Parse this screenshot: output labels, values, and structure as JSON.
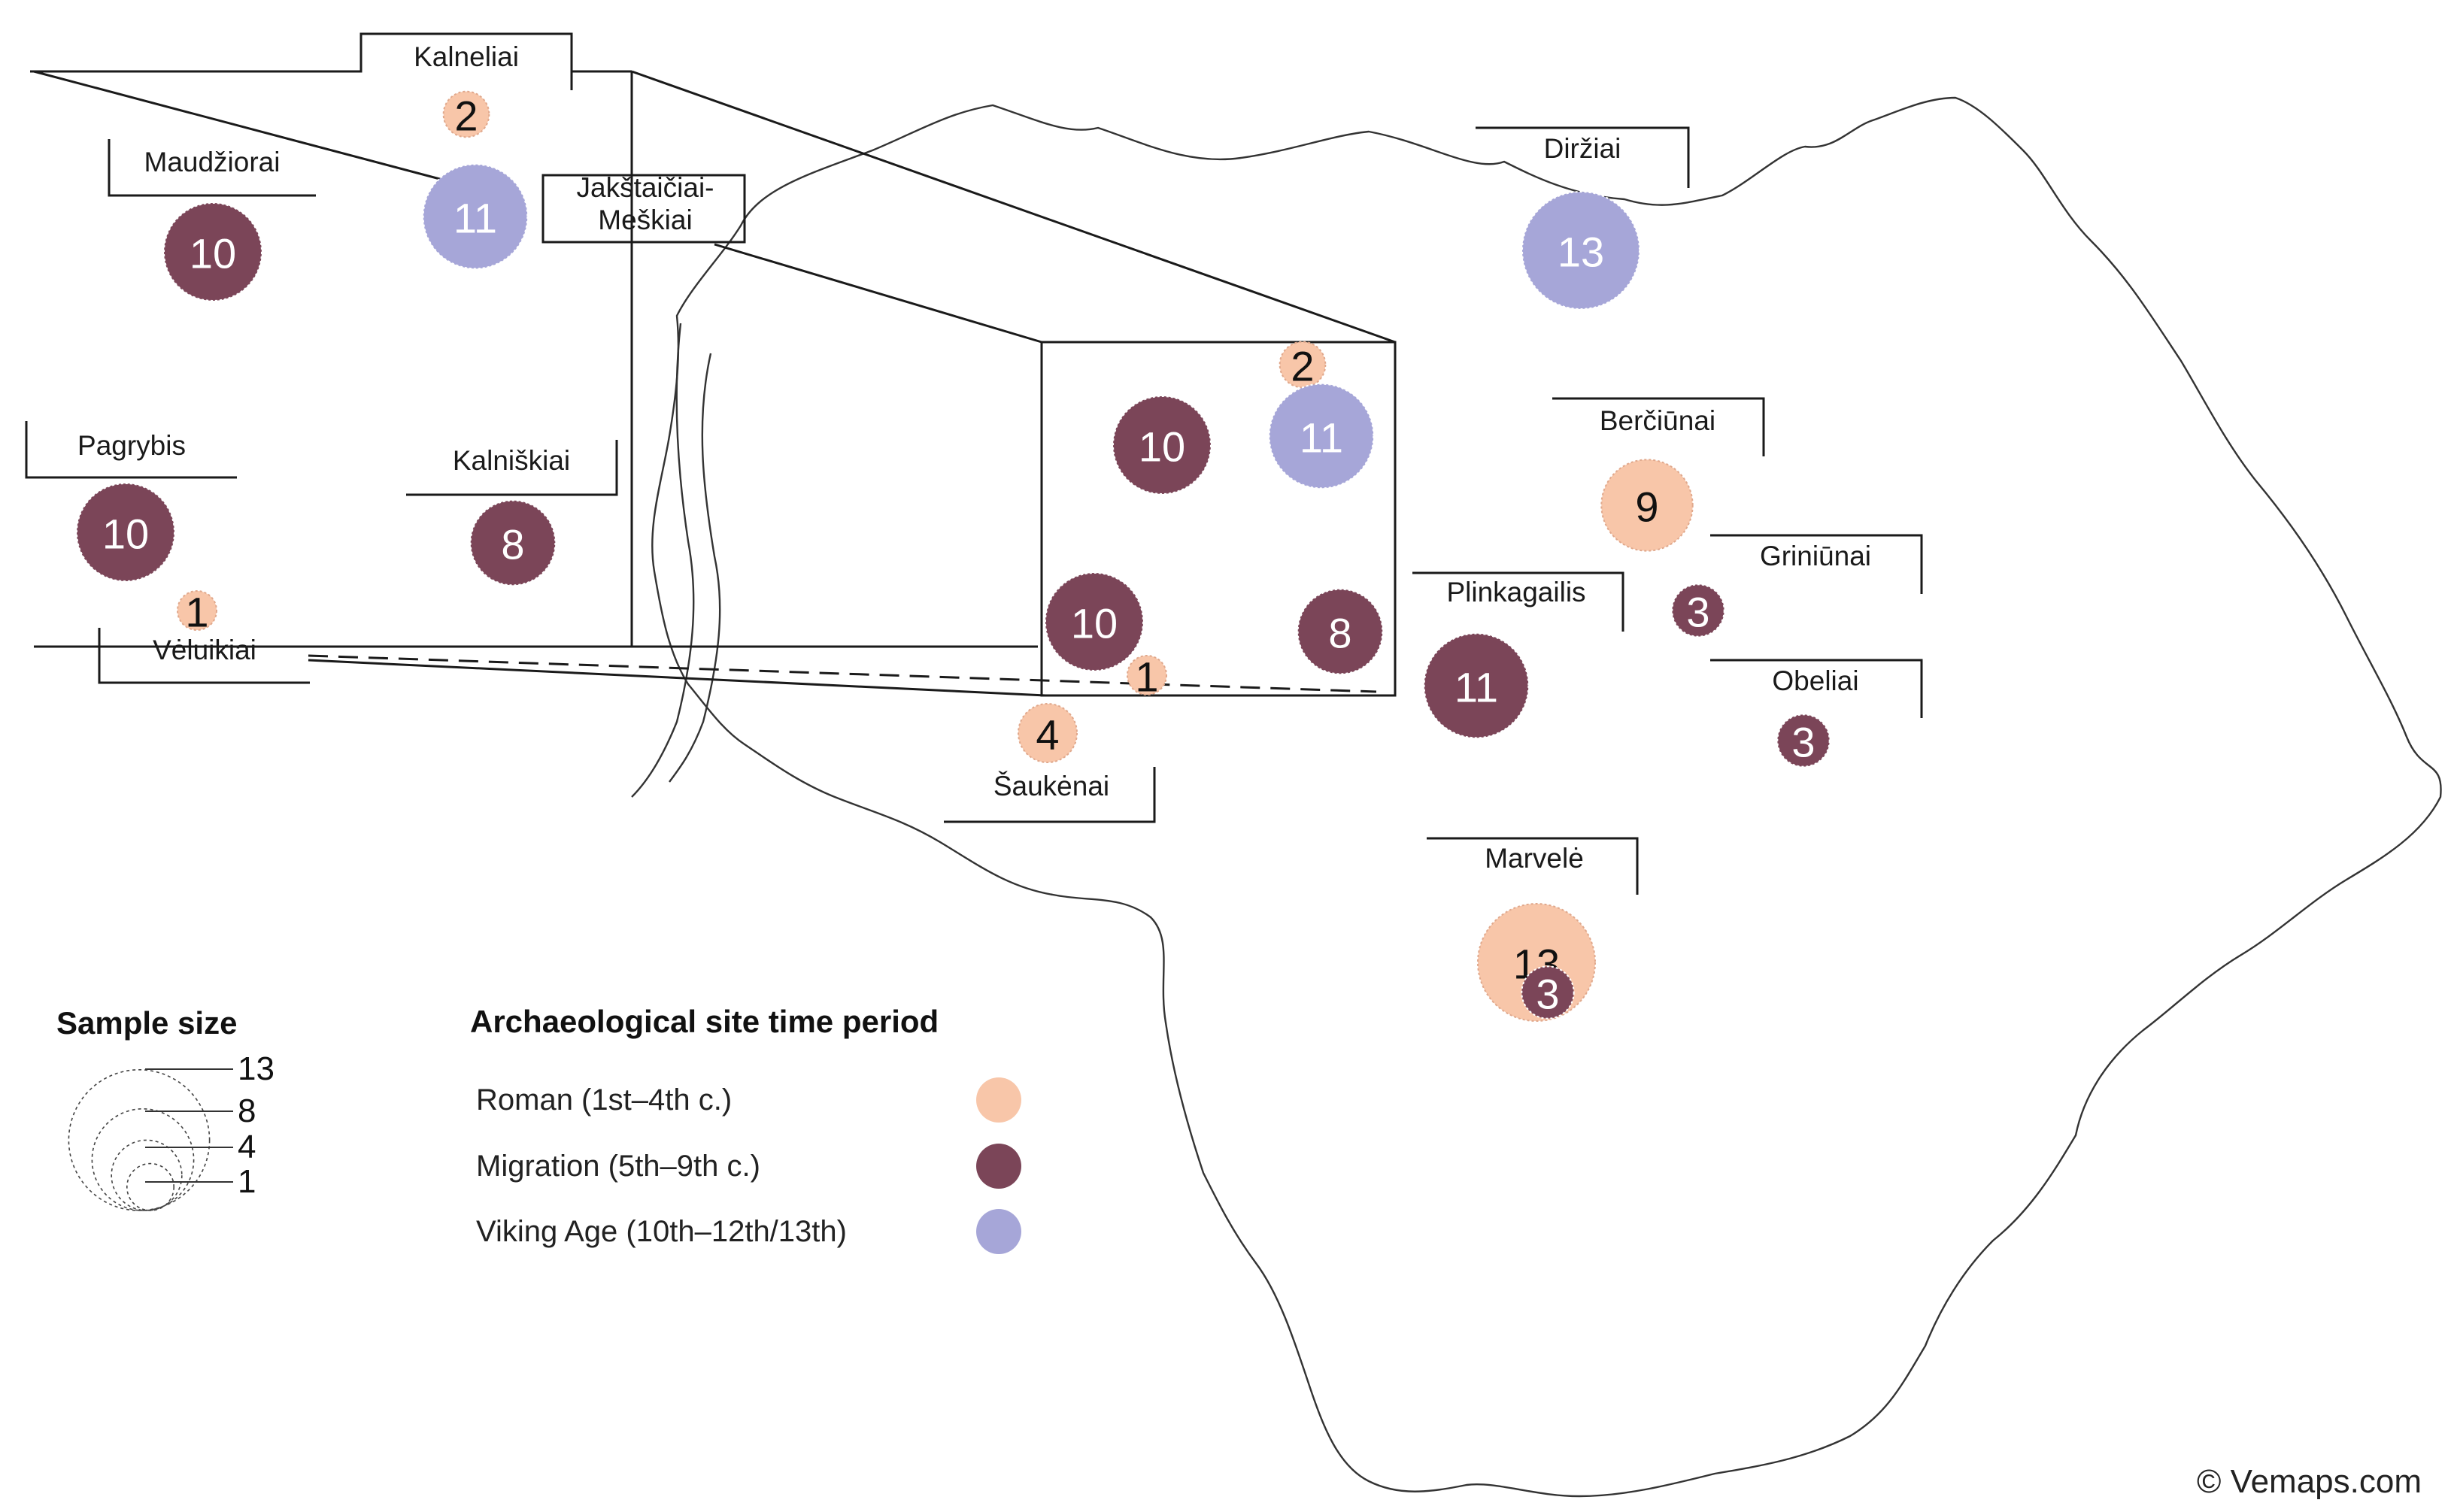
{
  "colors": {
    "roman": "#f8c6a9",
    "migration": "#7b4558",
    "viking": "#a6a6d8"
  },
  "sites": [
    {
      "id": "kalneliai",
      "name": "Kalneliai"
    },
    {
      "id": "maudziorai",
      "name": "Maudžiorai"
    },
    {
      "id": "jakstaiciai",
      "name": "Jakštaičiai-",
      "name2": "Meškiai"
    },
    {
      "id": "pagrybis",
      "name": "Pagrybis"
    },
    {
      "id": "kalniskiai",
      "name": "Kalniškiai"
    },
    {
      "id": "veluikiai",
      "name": "Vėluikiai"
    },
    {
      "id": "saukenai",
      "name": "Šaukėnai"
    },
    {
      "id": "dirziai",
      "name": "Diržiai"
    },
    {
      "id": "berciunai",
      "name": "Berčiūnai"
    },
    {
      "id": "griniunai",
      "name": "Griniūnai"
    },
    {
      "id": "plinkagailis",
      "name": "Plinkagailis"
    },
    {
      "id": "obeliai",
      "name": "Obeliai"
    },
    {
      "id": "marvele",
      "name": "Marvelė"
    }
  ],
  "samples": [
    {
      "id": "kalneliai-roman",
      "period": "roman",
      "n": 2
    },
    {
      "id": "jakstaiciai-viking",
      "period": "viking",
      "n": 11
    },
    {
      "id": "maudziorai-migration",
      "period": "migration",
      "n": 10
    },
    {
      "id": "pagrybis-migration",
      "period": "migration",
      "n": 10
    },
    {
      "id": "kalniskiai-migration",
      "period": "migration",
      "n": 8
    },
    {
      "id": "veluikiai-roman",
      "period": "roman",
      "n": 1
    },
    {
      "id": "cluster-migration-a",
      "period": "migration",
      "n": 10
    },
    {
      "id": "cluster-roman-a",
      "period": "roman",
      "n": 2
    },
    {
      "id": "cluster-viking",
      "period": "viking",
      "n": 11
    },
    {
      "id": "cluster-migration-b",
      "period": "migration",
      "n": 10
    },
    {
      "id": "cluster-migration-c",
      "period": "migration",
      "n": 8
    },
    {
      "id": "cluster-roman-b",
      "period": "roman",
      "n": 1
    },
    {
      "id": "saukenai-roman",
      "period": "roman",
      "n": 4
    },
    {
      "id": "dirziai-viking",
      "period": "viking",
      "n": 13
    },
    {
      "id": "berciunai-roman",
      "period": "roman",
      "n": 9
    },
    {
      "id": "griniunai-migration",
      "period": "migration",
      "n": 3
    },
    {
      "id": "plinkagailis-migration",
      "period": "migration",
      "n": 11
    },
    {
      "id": "obeliai-migration",
      "period": "migration",
      "n": 3
    },
    {
      "id": "marvele-roman",
      "period": "roman",
      "n": 13
    },
    {
      "id": "marvele-migration",
      "period": "migration",
      "n": 3
    }
  ],
  "legend": {
    "size_title": "Sample size",
    "size_values": [
      13,
      8,
      4,
      1
    ],
    "period_title": "Archaeological site time period",
    "periods": [
      {
        "key": "roman",
        "label": "Roman (1st–4th c.)"
      },
      {
        "key": "migration",
        "label": "Migration (5th–9th c.)"
      },
      {
        "key": "viking",
        "label": "Viking Age (10th–12th/13th)"
      }
    ]
  },
  "credit": "© Vemaps.com"
}
